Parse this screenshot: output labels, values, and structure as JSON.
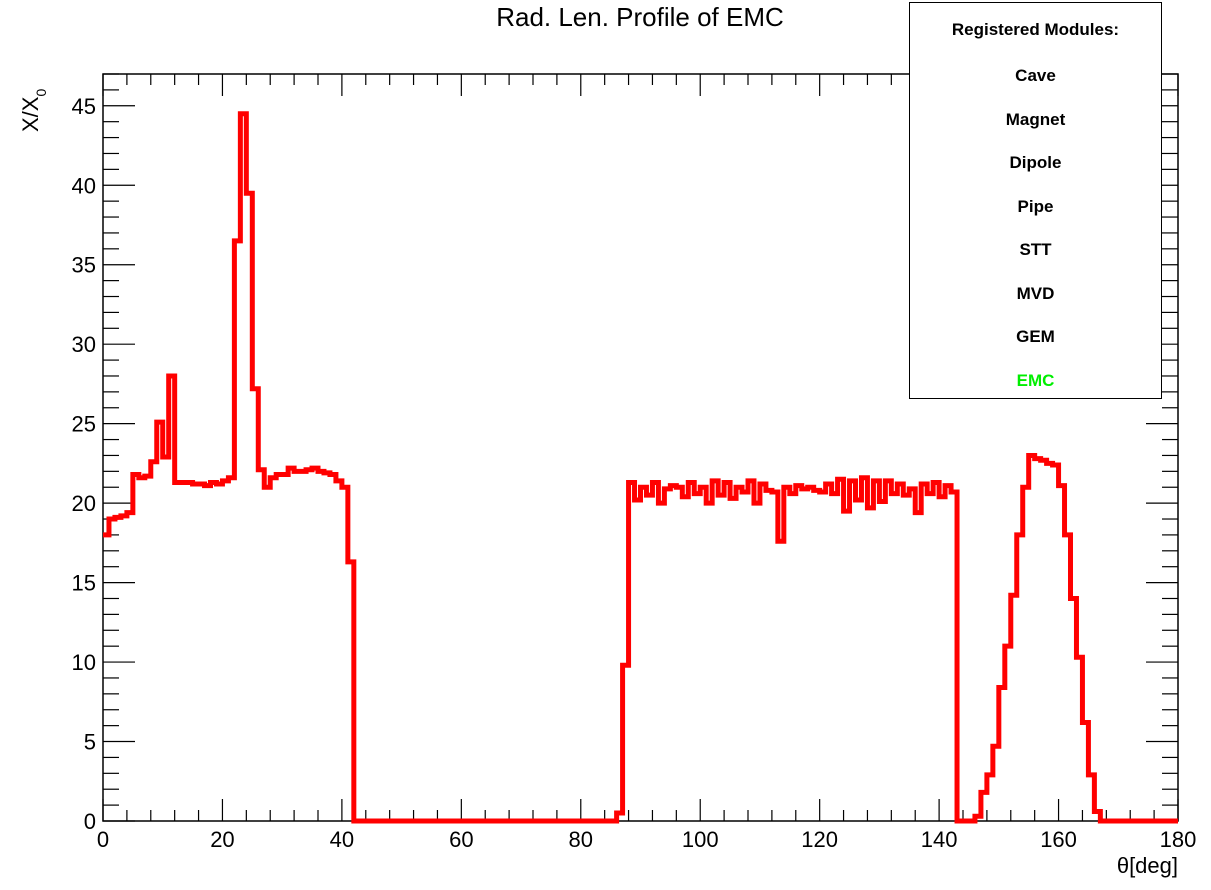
{
  "chart_data": {
    "type": "line",
    "title": "Rad. Len. Profile of EMC",
    "xlabel": "θ[deg]",
    "ylabel_main": "X/X",
    "ylabel_sub": "0",
    "xlim": [
      0,
      180
    ],
    "ylim": [
      0,
      47
    ],
    "xticks": [
      "0",
      "20",
      "40",
      "60",
      "80",
      "100",
      "120",
      "140",
      "160",
      "180"
    ],
    "yticks": [
      "0",
      "5",
      "10",
      "15",
      "20",
      "25",
      "30",
      "35",
      "40",
      "45"
    ],
    "grid": false,
    "legend": {
      "title": "Registered Modules:",
      "position": "top-right",
      "items": [
        {
          "label": "Cave",
          "color": "#000000"
        },
        {
          "label": "Magnet",
          "color": "#000000"
        },
        {
          "label": "Dipole",
          "color": "#000000"
        },
        {
          "label": "Pipe",
          "color": "#000000"
        },
        {
          "label": "STT",
          "color": "#000000"
        },
        {
          "label": "MVD",
          "color": "#000000"
        },
        {
          "label": "GEM",
          "color": "#000000"
        },
        {
          "label": "EMC",
          "color": "#00ee00"
        }
      ]
    },
    "series": [
      {
        "color": "#ff0000",
        "style": "step",
        "x": [
          0,
          1,
          2,
          3,
          4,
          5,
          6,
          7,
          8,
          9,
          10,
          11,
          12,
          13,
          14,
          15,
          16,
          17,
          18,
          19,
          20,
          21,
          22,
          23,
          24,
          25,
          26,
          27,
          28,
          29,
          30,
          31,
          32,
          33,
          34,
          35,
          36,
          37,
          38,
          39,
          40,
          41,
          42,
          43,
          44,
          45,
          46,
          47,
          48,
          49,
          50,
          51,
          52,
          53,
          54,
          55,
          56,
          57,
          58,
          59,
          60,
          61,
          62,
          63,
          64,
          65,
          66,
          67,
          68,
          69,
          70,
          71,
          72,
          73,
          74,
          75,
          76,
          77,
          78,
          79,
          80,
          81,
          82,
          83,
          84,
          85,
          86,
          87,
          88,
          89,
          90,
          91,
          92,
          93,
          94,
          95,
          96,
          97,
          98,
          99,
          100,
          101,
          102,
          103,
          104,
          105,
          106,
          107,
          108,
          109,
          110,
          111,
          112,
          113,
          114,
          115,
          116,
          117,
          118,
          119,
          120,
          121,
          122,
          123,
          124,
          125,
          126,
          127,
          128,
          129,
          130,
          131,
          132,
          133,
          134,
          135,
          136,
          137,
          138,
          139,
          140,
          141,
          142,
          143,
          144,
          145,
          146,
          147,
          148,
          149,
          150,
          151,
          152,
          153,
          154,
          155,
          156,
          157,
          158,
          159,
          160,
          161,
          162,
          163,
          164,
          165,
          166,
          167,
          168,
          169,
          170,
          171,
          172,
          173,
          174,
          175,
          176,
          177,
          178,
          179
        ],
        "y": [
          18.0,
          19.0,
          19.1,
          19.2,
          19.4,
          21.8,
          21.6,
          21.7,
          22.6,
          25.1,
          22.9,
          28.0,
          21.3,
          21.3,
          21.3,
          21.2,
          21.2,
          21.1,
          21.3,
          21.2,
          21.4,
          21.6,
          36.5,
          44.5,
          39.5,
          27.2,
          22.1,
          21.0,
          21.6,
          21.8,
          21.8,
          22.2,
          22.0,
          22.0,
          22.1,
          22.2,
          22.0,
          21.9,
          21.8,
          21.4,
          21.0,
          16.3,
          0,
          0,
          0,
          0,
          0,
          0,
          0,
          0,
          0,
          0,
          0,
          0,
          0,
          0,
          0,
          0,
          0,
          0,
          0,
          0,
          0,
          0,
          0,
          0,
          0,
          0,
          0,
          0,
          0,
          0,
          0,
          0,
          0,
          0,
          0,
          0,
          0,
          0,
          0,
          0,
          0,
          0,
          0,
          0,
          0.5,
          9.8,
          21.3,
          20.2,
          21.0,
          20.5,
          21.3,
          20.0,
          20.9,
          21.1,
          21.0,
          20.4,
          21.3,
          20.6,
          21.0,
          20.0,
          21.4,
          20.5,
          21.3,
          20.3,
          21.0,
          20.7,
          21.4,
          20.0,
          21.2,
          20.8,
          20.7,
          17.6,
          21.0,
          20.6,
          21.1,
          20.9,
          21.0,
          20.8,
          20.7,
          21.2,
          20.6,
          21.5,
          19.5,
          21.4,
          20.2,
          21.6,
          19.7,
          21.4,
          20.1,
          21.4,
          20.6,
          21.2,
          20.5,
          20.9,
          19.4,
          21.2,
          20.6,
          21.3,
          20.4,
          21.1,
          20.7,
          0,
          0,
          0,
          0.3,
          1.8,
          2.9,
          4.7,
          8.4,
          11.0,
          14.2,
          18.0,
          21.0,
          23.0,
          22.8,
          22.7,
          22.5,
          22.4,
          21.1,
          18.0,
          14.0,
          10.3,
          6.2,
          2.9,
          0.6,
          0,
          0,
          0,
          0,
          0,
          0,
          0,
          0,
          0,
          0,
          0,
          0,
          0
        ]
      }
    ]
  }
}
